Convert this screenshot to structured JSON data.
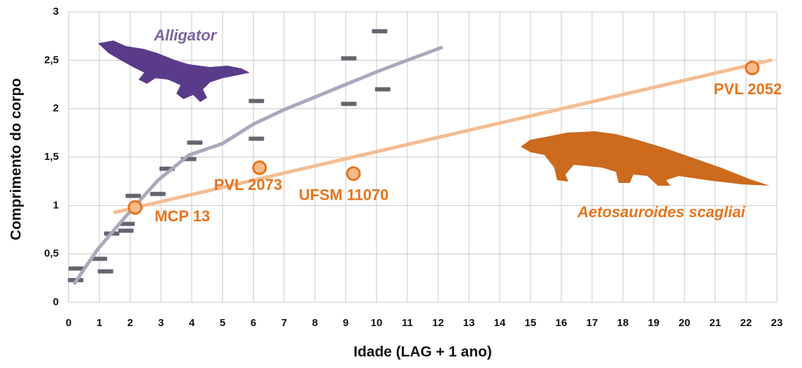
{
  "chart_data": {
    "type": "scatter",
    "x_label": "Idade (LAG + 1 ano)",
    "y_label": "Comprimento do corpo",
    "xlim": [
      0,
      23
    ],
    "ylim": [
      0,
      3
    ],
    "xticks": [
      0,
      1,
      2,
      3,
      4,
      5,
      6,
      7,
      8,
      9,
      10,
      11,
      12,
      13,
      14,
      15,
      16,
      17,
      18,
      19,
      20,
      21,
      22,
      23
    ],
    "yticks": [
      0,
      {
        "value": 0.5,
        "label": "0,5"
      },
      1,
      {
        "value": 1.5,
        "label": "1,5"
      },
      2,
      {
        "value": 2.5,
        "label": "2,5"
      },
      3
    ],
    "grid": true,
    "annotations": [
      "Alligator",
      "Aetosauroides scagliai"
    ],
    "series": [
      {
        "type": "scatter",
        "marker": "dash",
        "color": "#67646f",
        "x": [
          0.23,
          0.25,
          1.0,
          1.2,
          1.4,
          1.86,
          1.9,
          2.1,
          2.9,
          3.2,
          3.9,
          4.1,
          6.1,
          6.1,
          9.1,
          9.1,
          10.2,
          10.1
        ],
        "values": [
          0.23,
          0.35,
          0.45,
          0.32,
          0.71,
          0.74,
          0.81,
          1.1,
          1.12,
          1.38,
          1.48,
          1.65,
          1.69,
          2.08,
          2.05,
          2.52,
          2.2,
          2.8
        ]
      },
      {
        "type": "line",
        "color": "#aba8bc",
        "x": [
          0.2,
          0.95,
          1.86,
          2.9,
          3.9,
          5,
          6,
          7,
          8,
          9,
          10,
          11,
          12.1
        ],
        "values": [
          0.2,
          0.55,
          0.89,
          1.26,
          1.52,
          1.64,
          1.84,
          1.99,
          2.12,
          2.25,
          2.38,
          2.5,
          2.63
        ]
      },
      {
        "type": "line",
        "color": "#f4bd92",
        "x": [
          1.5,
          22.8
        ],
        "values": [
          0.93,
          2.5
        ]
      },
      {
        "type": "scatter",
        "marker": "circle",
        "color": "#e8731c",
        "x": [
          2.16,
          6.2,
          9.25,
          22.2
        ],
        "values": [
          0.98,
          1.39,
          1.33,
          2.42
        ],
        "labels": [
          "MCP 13",
          "PVL 2073",
          "UFSM  11070",
          "PVL 2052"
        ]
      }
    ]
  }
}
